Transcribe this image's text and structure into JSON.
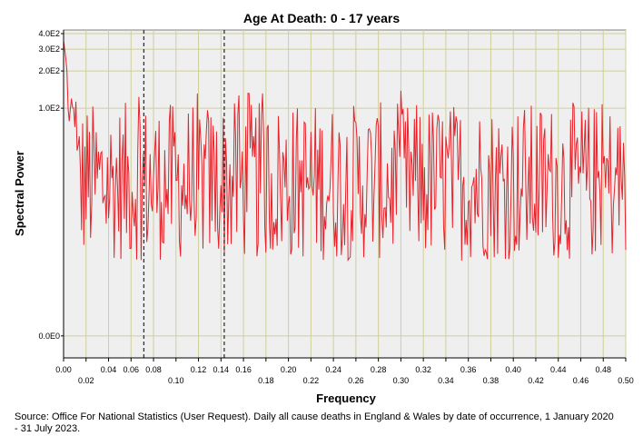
{
  "chart_data": {
    "type": "line",
    "title": "Age At Death: 0 - 17 years",
    "xlabel": "Frequency",
    "ylabel": "Spectral Power",
    "xlim": [
      0.0,
      0.5
    ],
    "x_ticks_top_row": [
      "0.00",
      "0.04",
      "0.06",
      "0.08",
      "0.12",
      "0.14",
      "0.16",
      "0.20",
      "0.24",
      "0.28",
      "0.32",
      "0.36",
      "0.40",
      "0.44",
      "0.48"
    ],
    "x_ticks_bottom_row": [
      "0.02",
      "0.10",
      "0.18",
      "0.22",
      "0.26",
      "0.30",
      "0.34",
      "0.38",
      "0.42",
      "0.46",
      "0.50"
    ],
    "y_tick_labels": [
      "4.0E2",
      "3.0E2",
      "2.0E2",
      "1.0E2",
      "0.0E0"
    ],
    "y_ticks": [
      400,
      300,
      200,
      100,
      0
    ],
    "y_scale": "log-like (0 at baseline, 1.0E2, 2.0E2, 3.0E2, 4.0E2 toward top)",
    "reference_lines": [
      {
        "x": 0.0714,
        "style": "dashed",
        "color": "#333333"
      },
      {
        "x": 0.1429,
        "style": "dashed",
        "color": "#333333"
      }
    ],
    "grid": true,
    "plot_background": "#efefef",
    "gridline_color": "#cfcf9a",
    "series": [
      {
        "color": "#e8222a",
        "sample_spacing": 0.001,
        "n_points": 501,
        "trend": "starts high near 3.5E2 at 0.00, drops quickly, then fluctuates noisily between roughly 5 and 1.0E2 across the full frequency range with occasional peaks above 1.0E2"
      }
    ]
  },
  "source_note": "Source: Office For National Statistics (User Request). Daily all cause deaths in England & Wales by date of occurrence, 1 January 2020 - 31 July 2023."
}
